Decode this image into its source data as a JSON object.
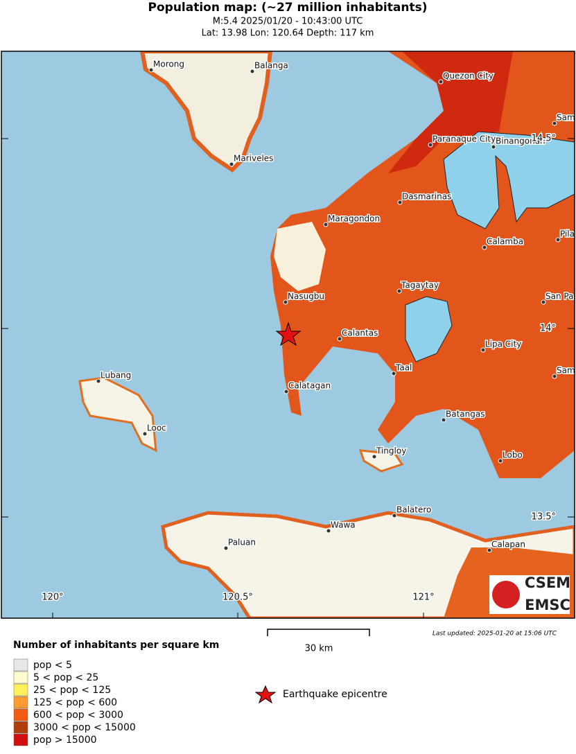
{
  "header": {
    "title": "Population map: (~27 million inhabitants)",
    "line1": "M:5.4 2025/01/20 - 10:43:00 UTC",
    "line2": "Lat: 13.98 Lon: 120.64 Depth: 117 km"
  },
  "map": {
    "cities": [
      "Morong",
      "Balanga",
      "Mariveles",
      "Quezon City",
      "Sam",
      "Paranaque City",
      "Binangonan",
      "Dasmarinas",
      "Maragondon",
      "Calamba",
      "Pila",
      "Tagaytay",
      "San Pa",
      "Nasugbu",
      "Calantas",
      "Lipa City",
      "Taal",
      "Sam",
      "Lubang",
      "Calatagan",
      "Batangas",
      "Looc",
      "Tingloy",
      "Lobo",
      "Balatero",
      "Wawa",
      "Calapan",
      "Paluan"
    ],
    "lon_labels": [
      "120°",
      "120.5°",
      "121°"
    ],
    "lat_labels": [
      "14.5°",
      "14°",
      "13.5°"
    ],
    "logo": [
      "CSEM",
      "EMSC"
    ]
  },
  "scale": "30 km",
  "last_updated": "Last updated: 2025-01-20 at 15:06 UTC",
  "legend": {
    "title": "Number of inhabitants per square km",
    "items": [
      {
        "label": "pop < 5",
        "color": "#e8e8e8"
      },
      {
        "label": "5 < pop < 25",
        "color": "#fefccc"
      },
      {
        "label": "25 < pop < 125",
        "color": "#fef05a"
      },
      {
        "label": "125 < pop < 600",
        "color": "#fd9a30"
      },
      {
        "label": "600 < pop < 3000",
        "color": "#f45a12"
      },
      {
        "label": "3000 < pop < 15000",
        "color": "#b13d0d"
      },
      {
        "label": "pop > 15000",
        "color": "#d40e0e"
      }
    ]
  },
  "epicentre_label": "Earthquake epicentre"
}
